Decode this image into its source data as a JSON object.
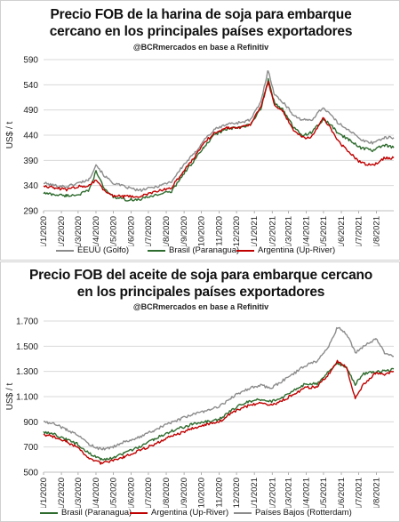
{
  "chart_data": [
    {
      "type": "line",
      "title": "Precio FOB de la harina de soja  para embarque cercano en los principales países exportadores",
      "title_lines": [
        "Precio FOB de la harina de soja  para embarque",
        "cercano en los principales países exportadores"
      ],
      "subtitle": "@BCRmercados en base a Refinitiv",
      "ylabel": "US$ / t",
      "ylim": [
        290,
        590
      ],
      "yticks": [
        290,
        340,
        390,
        440,
        490,
        540,
        590
      ],
      "ytick_labels": [
        "290",
        "340",
        "390",
        "440",
        "490",
        "540",
        "590"
      ],
      "xlim": [
        "2020-01-01",
        "2021-08-31"
      ],
      "xtick_labels": [
        "1/1/2020",
        "1/2/2020",
        "1/3/2020",
        "1/4/2020",
        "1/5/2020",
        "1/6/2020",
        "1/7/2020",
        "1/8/2020",
        "1/9/2020",
        "1/10/2020",
        "1/11/2020",
        "1/12/2020",
        "1/1/2021",
        "1/2/2021",
        "1/3/2021",
        "1/4/2021",
        "1/5/2021",
        "1/6/2021",
        "1/7/2021",
        "1/8/2021"
      ],
      "grid": true,
      "legend_position": "bottom",
      "series": [
        {
          "name": "EEUU (Golfo)",
          "color": "#8c8c8c",
          "x": [
            "2020-01-01",
            "2020-01-20",
            "2020-02-10",
            "2020-03-01",
            "2020-03-20",
            "2020-04-01",
            "2020-04-15",
            "2020-05-01",
            "2020-05-20",
            "2020-06-15",
            "2020-07-15",
            "2020-08-10",
            "2020-09-01",
            "2020-09-20",
            "2020-10-05",
            "2020-10-25",
            "2020-11-15",
            "2020-12-05",
            "2020-12-25",
            "2021-01-12",
            "2021-01-25",
            "2021-02-05",
            "2021-02-20",
            "2021-03-10",
            "2021-03-25",
            "2021-04-10",
            "2021-04-30",
            "2021-05-10",
            "2021-05-25",
            "2021-06-15",
            "2021-07-05",
            "2021-07-25",
            "2021-08-15",
            "2021-08-31"
          ],
          "y": [
            345,
            340,
            338,
            345,
            352,
            382,
            360,
            345,
            338,
            330,
            338,
            348,
            382,
            405,
            430,
            452,
            462,
            465,
            470,
            505,
            570,
            520,
            505,
            480,
            470,
            470,
            495,
            485,
            465,
            450,
            430,
            425,
            435,
            435
          ]
        },
        {
          "name": "Brasil (Paranagua)",
          "color": "#2e6b2e",
          "x": [
            "2020-01-01",
            "2020-01-20",
            "2020-02-10",
            "2020-03-01",
            "2020-03-20",
            "2020-04-01",
            "2020-04-15",
            "2020-05-01",
            "2020-05-20",
            "2020-06-15",
            "2020-07-15",
            "2020-08-10",
            "2020-09-01",
            "2020-09-20",
            "2020-10-05",
            "2020-10-25",
            "2020-11-15",
            "2020-12-05",
            "2020-12-25",
            "2021-01-12",
            "2021-01-25",
            "2021-02-05",
            "2021-02-20",
            "2021-03-10",
            "2021-03-25",
            "2021-04-10",
            "2021-04-30",
            "2021-05-10",
            "2021-05-25",
            "2021-06-15",
            "2021-07-05",
            "2021-07-25",
            "2021-08-15",
            "2021-08-31"
          ],
          "y": [
            325,
            322,
            320,
            322,
            330,
            368,
            335,
            318,
            312,
            312,
            322,
            328,
            365,
            392,
            415,
            442,
            452,
            455,
            460,
            492,
            550,
            505,
            490,
            455,
            440,
            445,
            470,
            465,
            445,
            430,
            415,
            410,
            420,
            415
          ]
        },
        {
          "name": "Argentina (Up-River)",
          "color": "#c00000",
          "x": [
            "2020-01-01",
            "2020-01-20",
            "2020-02-10",
            "2020-03-01",
            "2020-03-20",
            "2020-04-01",
            "2020-04-15",
            "2020-05-01",
            "2020-05-20",
            "2020-06-15",
            "2020-07-15",
            "2020-08-10",
            "2020-09-01",
            "2020-09-20",
            "2020-10-05",
            "2020-10-25",
            "2020-11-15",
            "2020-12-05",
            "2020-12-25",
            "2021-01-12",
            "2021-01-25",
            "2021-02-05",
            "2021-02-20",
            "2021-03-10",
            "2021-03-25",
            "2021-04-10",
            "2021-04-30",
            "2021-05-10",
            "2021-05-25",
            "2021-06-15",
            "2021-07-05",
            "2021-07-25",
            "2021-08-15",
            "2021-08-31"
          ],
          "y": [
            340,
            335,
            332,
            338,
            340,
            352,
            330,
            320,
            318,
            318,
            328,
            336,
            370,
            398,
            425,
            445,
            455,
            455,
            462,
            495,
            545,
            500,
            485,
            450,
            435,
            435,
            475,
            460,
            430,
            405,
            385,
            380,
            395,
            395
          ]
        }
      ]
    },
    {
      "type": "line",
      "title": "Precio FOB del aceite de soja  para embarque cercano en los principales países exportadores",
      "title_lines": [
        "Precio FOB del aceite de soja  para embarque cercano",
        "en los principales países exportadores"
      ],
      "subtitle": "@BCRmercados en base a Refinitiv",
      "ylabel": "US$ / t",
      "ylim": [
        500,
        1700
      ],
      "yticks": [
        500,
        700,
        900,
        1100,
        1300,
        1500,
        1700
      ],
      "ytick_labels": [
        "500",
        "700",
        "900",
        "1.100",
        "1.300",
        "1.500",
        "1.700"
      ],
      "xlim": [
        "2020-01-01",
        "2021-08-31"
      ],
      "xtick_labels": [
        "1/1/2020",
        "1/2/2020",
        "1/3/2020",
        "1/4/2020",
        "1/5/2020",
        "1/6/2020",
        "1/7/2020",
        "1/8/2020",
        "1/9/2020",
        "1/10/2020",
        "1/11/2020",
        "1/12/2020",
        "1/1/2021",
        "1/2/2021",
        "1/3/2021",
        "1/4/2021",
        "1/5/2021",
        "1/6/2021",
        "1/7/2021",
        "1/8/2021"
      ],
      "grid": true,
      "legend_position": "bottom",
      "series": [
        {
          "name": "Brasil (Paranagua)",
          "color": "#2e6b2e",
          "x": [
            "2020-01-01",
            "2020-01-20",
            "2020-02-10",
            "2020-03-01",
            "2020-03-20",
            "2020-04-10",
            "2020-05-01",
            "2020-05-20",
            "2020-06-15",
            "2020-07-10",
            "2020-08-01",
            "2020-08-25",
            "2020-09-15",
            "2020-10-10",
            "2020-11-01",
            "2020-11-25",
            "2020-12-15",
            "2021-01-10",
            "2021-01-31",
            "2021-02-20",
            "2021-03-10",
            "2021-03-31",
            "2021-04-20",
            "2021-05-10",
            "2021-05-25",
            "2021-06-10",
            "2021-06-25",
            "2021-07-10",
            "2021-07-31",
            "2021-08-15",
            "2021-08-31"
          ],
          "y": [
            820,
            800,
            760,
            720,
            650,
            600,
            610,
            650,
            700,
            760,
            810,
            850,
            880,
            900,
            920,
            1000,
            1050,
            1080,
            1060,
            1100,
            1150,
            1200,
            1200,
            1300,
            1370,
            1330,
            1200,
            1280,
            1300,
            1300,
            1320
          ]
        },
        {
          "name": "Argentina (Up-River)",
          "color": "#c00000",
          "x": [
            "2020-01-01",
            "2020-01-20",
            "2020-02-10",
            "2020-03-01",
            "2020-03-20",
            "2020-04-10",
            "2020-05-01",
            "2020-05-20",
            "2020-06-15",
            "2020-07-10",
            "2020-08-01",
            "2020-08-25",
            "2020-09-15",
            "2020-10-10",
            "2020-11-01",
            "2020-11-25",
            "2020-12-15",
            "2021-01-10",
            "2021-01-31",
            "2021-02-20",
            "2021-03-10",
            "2021-03-31",
            "2021-04-20",
            "2021-05-10",
            "2021-05-25",
            "2021-06-10",
            "2021-06-25",
            "2021-07-10",
            "2021-07-31",
            "2021-08-15",
            "2021-08-31"
          ],
          "y": [
            800,
            780,
            740,
            690,
            610,
            570,
            590,
            620,
            670,
            720,
            770,
            810,
            850,
            880,
            900,
            980,
            1020,
            1050,
            1030,
            1070,
            1120,
            1170,
            1180,
            1280,
            1380,
            1330,
            1090,
            1200,
            1290,
            1280,
            1300
          ]
        },
        {
          "name": "Países Bajos (Rotterdam)",
          "color": "#8c8c8c",
          "x": [
            "2020-01-01",
            "2020-01-20",
            "2020-02-10",
            "2020-03-01",
            "2020-03-20",
            "2020-04-10",
            "2020-05-01",
            "2020-05-20",
            "2020-06-15",
            "2020-07-10",
            "2020-08-01",
            "2020-08-25",
            "2020-09-15",
            "2020-10-10",
            "2020-11-01",
            "2020-11-25",
            "2020-12-15",
            "2021-01-10",
            "2021-01-31",
            "2021-02-20",
            "2021-03-10",
            "2021-03-31",
            "2021-04-20",
            "2021-05-10",
            "2021-05-25",
            "2021-06-10",
            "2021-06-25",
            "2021-07-10",
            "2021-07-31",
            "2021-08-15",
            "2021-08-31"
          ],
          "y": [
            900,
            880,
            840,
            790,
            720,
            680,
            700,
            740,
            780,
            830,
            880,
            920,
            960,
            990,
            1020,
            1100,
            1150,
            1190,
            1170,
            1230,
            1280,
            1350,
            1380,
            1500,
            1650,
            1600,
            1450,
            1500,
            1560,
            1450,
            1420
          ]
        }
      ]
    }
  ]
}
